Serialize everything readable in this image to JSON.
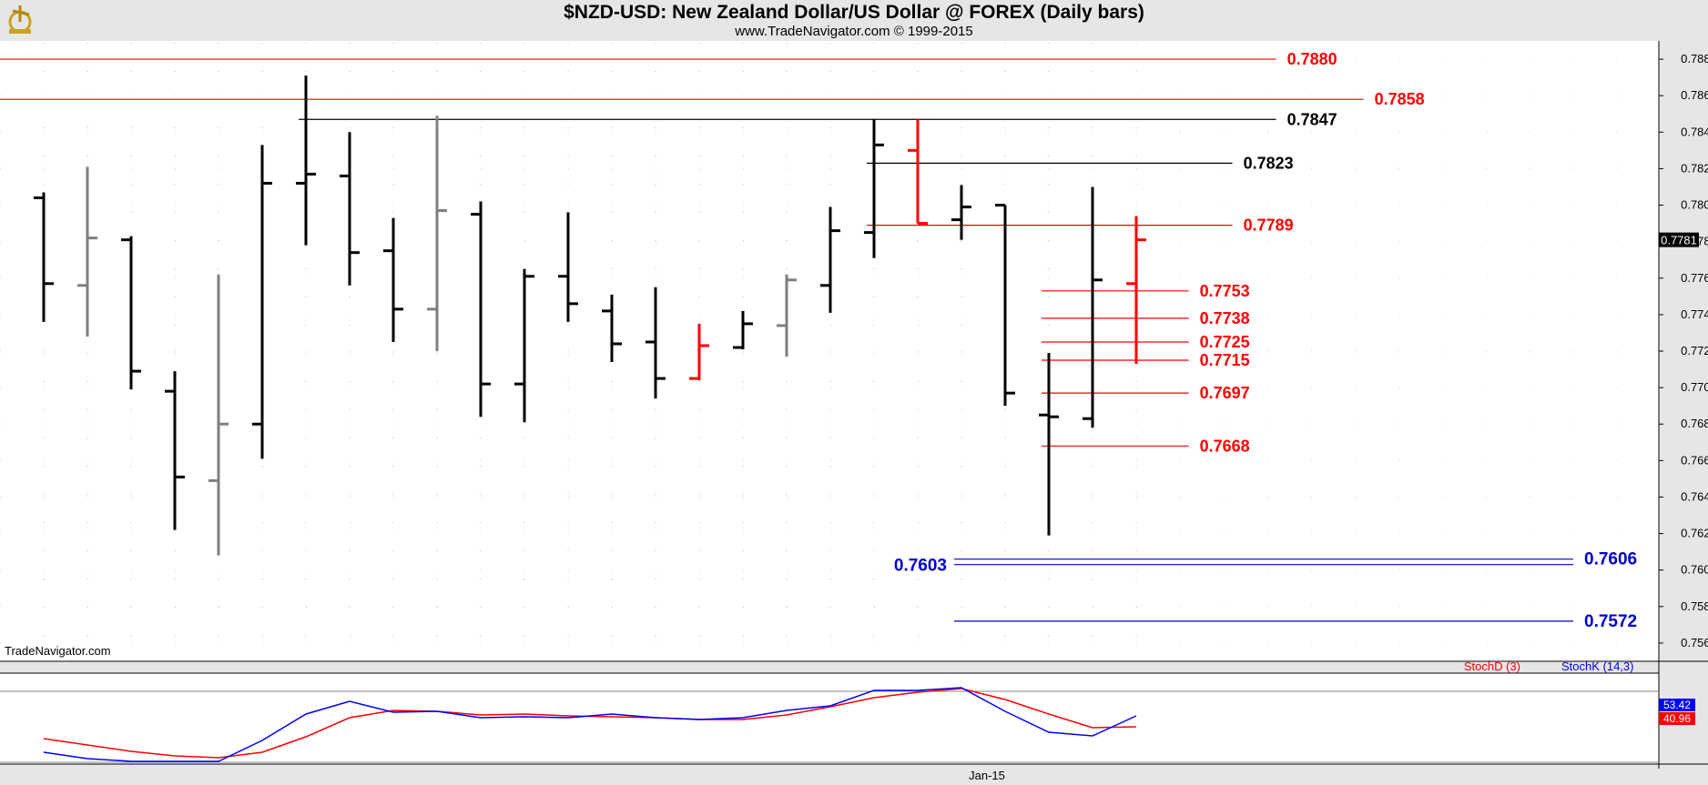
{
  "title": "$NZD-USD:  New Zealand Dollar/US Dollar @ FOREX  (Daily bars)",
  "subtitle": "www.TradeNavigator.com © 1999-2015",
  "watermark": "TradeNavigator.com",
  "colors": {
    "up_bar": "#000000",
    "alt_bar": "#7f7f7f",
    "red_bar": "#ff0000",
    "resistance": "#ff0000",
    "support": "#0000cc",
    "swing": "#000000",
    "stoch_d": "#ff0000",
    "stoch_k": "#0000ff"
  },
  "chart_data": [
    {
      "type": "ohlc",
      "ylim": [
        0.755,
        0.789
      ],
      "y_ticks": [
        "0.7880",
        "0.7860",
        "0.7840",
        "0.7820",
        "0.7800",
        "0.7780",
        "0.7760",
        "0.7740",
        "0.7720",
        "0.7700",
        "0.7680",
        "0.7660",
        "0.7640",
        "0.7620",
        "0.7600",
        "0.7580",
        "0.7560"
      ],
      "last_price_label": "0.7781",
      "x_tick_labels": [
        {
          "bar": 22,
          "label": "Jan-15"
        }
      ],
      "bars": [
        {
          "o": 0.7804,
          "h": 0.7807,
          "l": 0.7736,
          "c": 0.7757,
          "color": "black"
        },
        {
          "o": 0.7756,
          "h": 0.7821,
          "l": 0.7728,
          "c": 0.7782,
          "color": "gray"
        },
        {
          "o": 0.7781,
          "h": 0.7783,
          "l": 0.7699,
          "c": 0.7709,
          "color": "black"
        },
        {
          "o": 0.7698,
          "h": 0.7709,
          "l": 0.7622,
          "c": 0.7651,
          "color": "black"
        },
        {
          "o": 0.7649,
          "h": 0.7762,
          "l": 0.7608,
          "c": 0.768,
          "color": "gray"
        },
        {
          "o": 0.768,
          "h": 0.7833,
          "l": 0.7661,
          "c": 0.7812,
          "color": "black"
        },
        {
          "o": 0.7812,
          "h": 0.7871,
          "l": 0.7778,
          "c": 0.7817,
          "color": "black"
        },
        {
          "o": 0.7816,
          "h": 0.784,
          "l": 0.7756,
          "c": 0.7774,
          "color": "black"
        },
        {
          "o": 0.7775,
          "h": 0.7793,
          "l": 0.7725,
          "c": 0.7743,
          "color": "black"
        },
        {
          "o": 0.7743,
          "h": 0.7849,
          "l": 0.772,
          "c": 0.7797,
          "color": "gray"
        },
        {
          "o": 0.7795,
          "h": 0.7802,
          "l": 0.7684,
          "c": 0.7702,
          "color": "black"
        },
        {
          "o": 0.7702,
          "h": 0.7765,
          "l": 0.7681,
          "c": 0.7761,
          "color": "black"
        },
        {
          "o": 0.7761,
          "h": 0.7796,
          "l": 0.7736,
          "c": 0.7746,
          "color": "black"
        },
        {
          "o": 0.7742,
          "h": 0.7751,
          "l": 0.7714,
          "c": 0.7724,
          "color": "black"
        },
        {
          "o": 0.7725,
          "h": 0.7755,
          "l": 0.7694,
          "c": 0.7705,
          "color": "black"
        },
        {
          "o": 0.7705,
          "h": 0.7735,
          "l": 0.7704,
          "c": 0.7723,
          "color": "red"
        },
        {
          "o": 0.7722,
          "h": 0.7742,
          "l": 0.7721,
          "c": 0.7735,
          "color": "black"
        },
        {
          "o": 0.7734,
          "h": 0.7762,
          "l": 0.7717,
          "c": 0.7759,
          "color": "gray"
        },
        {
          "o": 0.7756,
          "h": 0.7799,
          "l": 0.7741,
          "c": 0.7786,
          "color": "black"
        },
        {
          "o": 0.7785,
          "h": 0.7847,
          "l": 0.7771,
          "c": 0.7833,
          "color": "black"
        },
        {
          "o": 0.783,
          "h": 0.7847,
          "l": 0.779,
          "c": 0.779,
          "color": "red"
        },
        {
          "o": 0.7792,
          "h": 0.7811,
          "l": 0.7781,
          "c": 0.7799,
          "color": "black"
        },
        {
          "o": 0.78,
          "h": 0.78,
          "l": 0.769,
          "c": 0.7697,
          "color": "black"
        },
        {
          "o": 0.7685,
          "h": 0.7719,
          "l": 0.7619,
          "c": 0.7684,
          "color": "black"
        },
        {
          "o": 0.7683,
          "h": 0.781,
          "l": 0.7678,
          "c": 0.7759,
          "color": "black"
        },
        {
          "o": 0.7757,
          "h": 0.7794,
          "l": 0.7713,
          "c": 0.7781,
          "color": "red"
        }
      ],
      "levels": [
        {
          "value": 0.788,
          "label": "0.7880",
          "kind": "resistance",
          "from_bar": -1,
          "to_bar": 28.2
        },
        {
          "value": 0.7858,
          "label": "0.7858",
          "kind": "resistance",
          "from_bar": -1,
          "to_bar": 30.2
        },
        {
          "value": 0.7847,
          "label": "0.7847",
          "kind": "swing",
          "from_bar": 6,
          "to_bar": 28.2
        },
        {
          "value": 0.7823,
          "label": "0.7823",
          "kind": "swing",
          "from_bar": 19,
          "to_bar": 27.2
        },
        {
          "value": 0.7789,
          "label": "0.7789",
          "kind": "resistance",
          "from_bar": 19,
          "to_bar": 27.2
        },
        {
          "value": 0.7753,
          "label": "0.7753",
          "kind": "resistance",
          "from_bar": 23,
          "to_bar": 26.2
        },
        {
          "value": 0.7738,
          "label": "0.7738",
          "kind": "resistance",
          "from_bar": 23,
          "to_bar": 26.2
        },
        {
          "value": 0.7725,
          "label": "0.7725",
          "kind": "resistance",
          "from_bar": 23,
          "to_bar": 26.2
        },
        {
          "value": 0.7715,
          "label": "0.7715",
          "kind": "resistance",
          "from_bar": 23,
          "to_bar": 26.2
        },
        {
          "value": 0.7697,
          "label": "0.7697",
          "kind": "resistance",
          "from_bar": 23,
          "to_bar": 26.2
        },
        {
          "value": 0.7668,
          "label": "0.7668",
          "kind": "resistance",
          "from_bar": 23,
          "to_bar": 26.2
        },
        {
          "value": 0.7606,
          "label": "0.7606",
          "kind": "support",
          "from_bar": 21,
          "to_bar": 35
        },
        {
          "value": 0.7603,
          "label": "0.7603",
          "kind": "support",
          "from_bar": 21,
          "to_bar": 35,
          "label_left": true
        },
        {
          "value": 0.7572,
          "label": "0.7572",
          "kind": "support",
          "from_bar": 21,
          "to_bar": 35
        }
      ]
    },
    {
      "type": "line",
      "ylim": [
        0,
        100
      ],
      "legend": [
        "StochD (3)",
        "StochK (14,3)"
      ],
      "series": [
        {
          "name": "StochD (3)",
          "color": "#ff0000",
          "last_label": "40.96",
          "values": [
            28,
            21,
            14,
            9,
            7,
            13,
            30,
            51,
            59,
            58,
            54,
            55,
            53,
            52,
            51,
            49,
            49,
            54,
            63,
            73,
            79,
            83,
            71,
            55,
            40,
            41
          ]
        },
        {
          "name": "StochK (14,3)",
          "color": "#0000ff",
          "last_label": "53.42",
          "values": [
            13,
            6,
            3,
            3,
            3,
            26,
            55,
            69,
            57,
            58,
            51,
            52,
            51,
            55,
            51,
            49,
            51,
            59,
            64,
            81,
            81,
            84,
            58,
            35,
            31,
            53
          ]
        }
      ]
    }
  ]
}
